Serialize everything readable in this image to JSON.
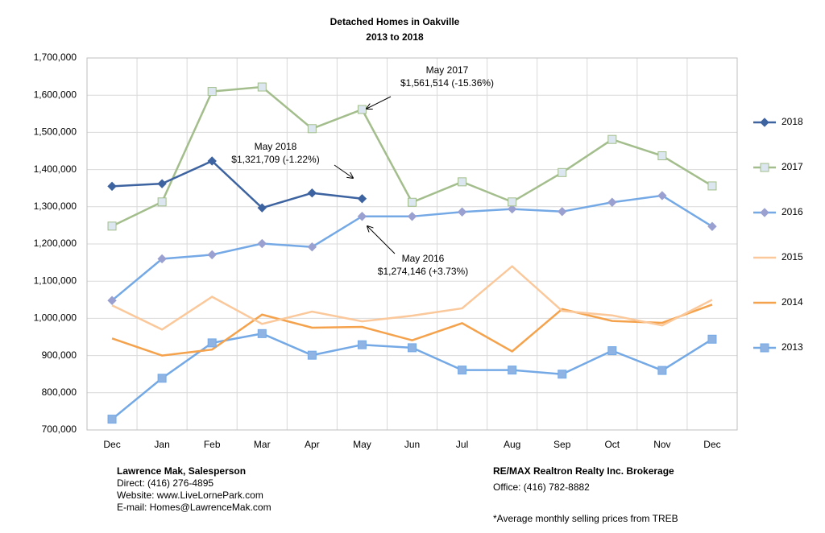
{
  "chart_data": {
    "type": "line",
    "title": "Detached Homes in Oakville",
    "subtitle": "2013 to 2018",
    "categories": [
      "Dec",
      "Jan",
      "Feb",
      "Mar",
      "Apr",
      "May",
      "Jun",
      "Jul",
      "Aug",
      "Sep",
      "Oct",
      "Nov",
      "Dec"
    ],
    "ylim": [
      700000,
      1700000
    ],
    "yticks": [
      {
        "value": 700000,
        "label": "700,000"
      },
      {
        "value": 800000,
        "label": "800,000"
      },
      {
        "value": 900000,
        "label": "900,000"
      },
      {
        "value": 1000000,
        "label": "1,000,000"
      },
      {
        "value": 1100000,
        "label": "1,100,000"
      },
      {
        "value": 1200000,
        "label": "1,200,000"
      },
      {
        "value": 1300000,
        "label": "1,300,000"
      },
      {
        "value": 1400000,
        "label": "1,400,000"
      },
      {
        "value": 1500000,
        "label": "1,500,000"
      },
      {
        "value": 1600000,
        "label": "1,600,000"
      },
      {
        "value": 1700000,
        "label": "1,700,000"
      }
    ],
    "grid": true,
    "legend": "right",
    "series": [
      {
        "name": "2018",
        "color": "#3d63a0",
        "marker": "diamond",
        "marker_fill": "#3d63a0",
        "values": [
          1355000,
          1362000,
          1423000,
          1297000,
          1337000,
          1321709,
          null,
          null,
          null,
          null,
          null,
          null,
          null
        ]
      },
      {
        "name": "2017",
        "color": "#a3be8c",
        "marker": "square",
        "marker_fill": "#dbe6f0",
        "values": [
          1248000,
          1313000,
          1610000,
          1622000,
          1510000,
          1561514,
          1312000,
          1367000,
          1313000,
          1392000,
          1481000,
          1437000,
          1356000
        ]
      },
      {
        "name": "2016",
        "color": "#74a9e6",
        "marker": "diamond",
        "marker_fill": "#9aa0d0",
        "values": [
          1048000,
          1160000,
          1171000,
          1201000,
          1192000,
          1274146,
          1274000,
          1286000,
          1294000,
          1287000,
          1312000,
          1330000,
          1247000
        ]
      },
      {
        "name": "2015",
        "color": "#fac89a",
        "marker": null,
        "marker_fill": null,
        "values": [
          1035000,
          970000,
          1058000,
          985000,
          1018000,
          992000,
          1007000,
          1027000,
          1140000,
          1020000,
          1008000,
          981000,
          1050000
        ]
      },
      {
        "name": "2014",
        "color": "#f5a24c",
        "marker": null,
        "marker_fill": null,
        "values": [
          946000,
          900000,
          916000,
          1010000,
          975000,
          977000,
          941000,
          987000,
          911000,
          1025000,
          993000,
          988000,
          1037000
        ]
      },
      {
        "name": "2013",
        "color": "#74a9e6",
        "marker": "square",
        "marker_fill": "#8fb4e3",
        "values": [
          729000,
          839000,
          934000,
          959000,
          901000,
          929000,
          921000,
          861000,
          861000,
          850000,
          913000,
          860000,
          944000
        ]
      }
    ],
    "annotations": [
      [
        "May 2017",
        "$1,561,514 (-15.36%)"
      ],
      [
        "May 2018",
        "$1,321,709 (-1.22%)"
      ],
      [
        "May 2016",
        "$1,274,146 (+3.73%)"
      ]
    ]
  },
  "footer": {
    "left": [
      "Lawrence Mak, Salesperson",
      "Direct:  (416) 276-4895",
      "Website:  www.LiveLornePark.com",
      "E-mail:  Homes@LawrenceMak.com"
    ],
    "right": [
      "RE/MAX Realtron Realty Inc. Brokerage",
      "Office: (416) 782-8882",
      "*Average monthly selling prices from TREB"
    ]
  }
}
